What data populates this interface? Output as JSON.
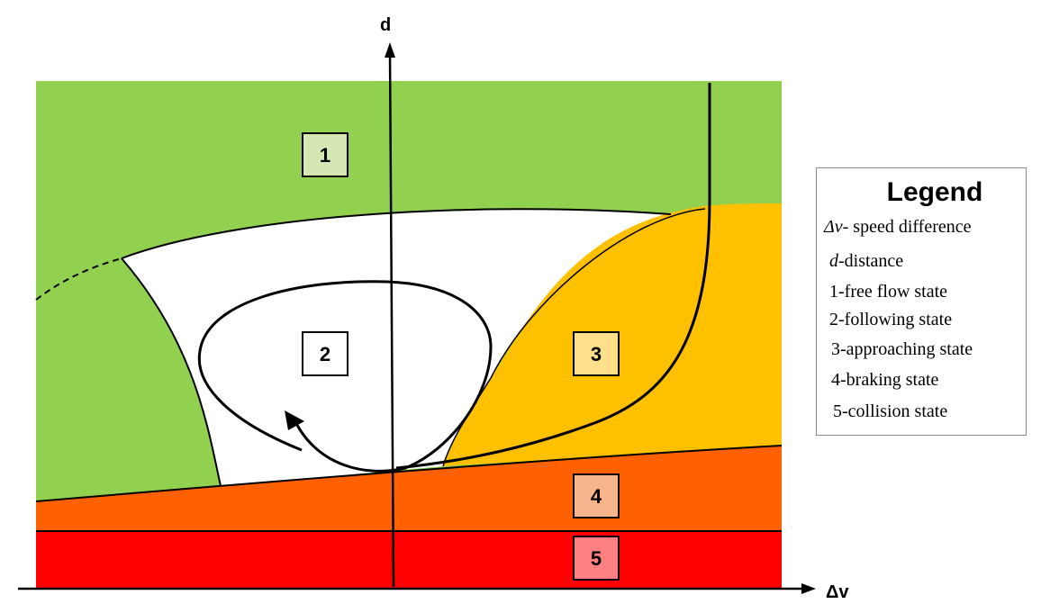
{
  "axes": {
    "y_label": "d",
    "x_label": "Δv"
  },
  "states": [
    {
      "number": "1",
      "fill": "#d5e8b4"
    },
    {
      "number": "2",
      "fill": "#ffffff"
    },
    {
      "number": "3",
      "fill": "#ffe08a"
    },
    {
      "number": "4",
      "fill": "#f8b48a"
    },
    {
      "number": "5",
      "fill": "#ff8080"
    }
  ],
  "regions": {
    "free_flow_color": "#92d050",
    "following_color": "#ffffff",
    "approaching_color": "#ffc000",
    "braking_color": "#ff6000",
    "collision_color": "#ff0000"
  },
  "legend": {
    "title": "Legend",
    "speed_symbol": "Δv",
    "speed_text": "- speed difference",
    "distance_symbol": "d",
    "distance_text": "-distance",
    "items": [
      "1-free flow state",
      "2-following state",
      "3-approaching state",
      "4-braking state",
      "5-collision state"
    ]
  }
}
